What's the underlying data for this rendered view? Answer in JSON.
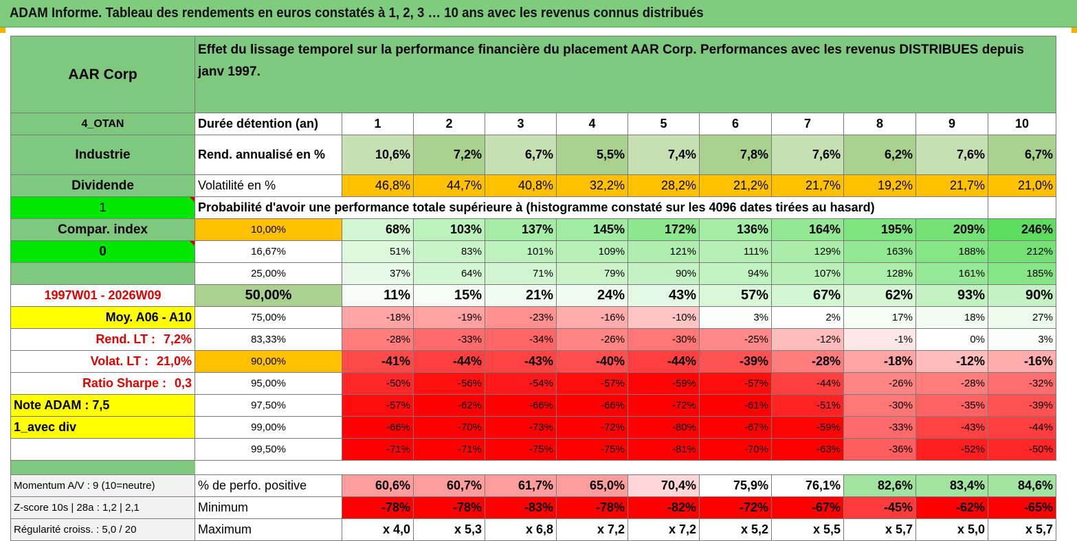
{
  "title": "ADAM Informe. Tableau des rendements en euros constatés à 1, 2, 3 … 10 ans avec les revenus connus distribués",
  "company": "AAR Corp",
  "header_text": "Effet du lissage temporel sur la performance financière du placement AAR Corp. Performances avec les revenus DISTRIBUES depuis janv 1997.",
  "side": [
    "4_OTAN",
    "Industrie",
    "Dividende",
    "1",
    "Compar. index",
    "0",
    "",
    "1997W01 - 2026W09"
  ],
  "side_yellow": [
    {
      "label": "Moy. A06 - A10",
      "value": ""
    },
    {
      "label": "Rend. LT :",
      "value": "7,2%"
    },
    {
      "label": "Volat. LT :",
      "value": "21,0%"
    },
    {
      "label": "Ratio Sharpe :",
      "value": "0,3"
    },
    {
      "label": "Note ADAM : 7,5",
      "value": ""
    },
    {
      "label": "1_avec div",
      "value": ""
    }
  ],
  "labels": {
    "duree": "Durée détention (an)",
    "rend": "Rend. annualisé en %",
    "vol": "Volatilité en %",
    "proba": "Probabilité d'avoir une performance totale supérieure à (histogramme constaté sur les 4096 dates tirées au hasard)"
  },
  "years": [
    "1",
    "2",
    "3",
    "4",
    "5",
    "6",
    "7",
    "8",
    "9",
    "10"
  ],
  "rend": [
    "10,6%",
    "7,2%",
    "6,7%",
    "5,5%",
    "7,4%",
    "7,8%",
    "7,6%",
    "6,2%",
    "7,6%",
    "6,7%"
  ],
  "vol": [
    "46,8%",
    "44,7%",
    "40,8%",
    "32,2%",
    "28,2%",
    "21,2%",
    "21,7%",
    "19,2%",
    "21,7%",
    "21,0%"
  ],
  "percentiles": [
    {
      "p": "10,00%",
      "v": [
        "68%",
        "103%",
        "137%",
        "145%",
        "172%",
        "136%",
        "164%",
        "195%",
        "209%",
        "246%"
      ]
    },
    {
      "p": "16,67%",
      "v": [
        "51%",
        "83%",
        "101%",
        "109%",
        "121%",
        "111%",
        "129%",
        "163%",
        "188%",
        "212%"
      ]
    },
    {
      "p": "25,00%",
      "v": [
        "37%",
        "64%",
        "71%",
        "79%",
        "90%",
        "94%",
        "107%",
        "128%",
        "161%",
        "185%"
      ]
    },
    {
      "p": "50,00%",
      "v": [
        "11%",
        "15%",
        "21%",
        "24%",
        "43%",
        "57%",
        "67%",
        "62%",
        "93%",
        "90%"
      ]
    },
    {
      "p": "75,00%",
      "v": [
        "-18%",
        "-19%",
        "-23%",
        "-16%",
        "-10%",
        "3%",
        "2%",
        "17%",
        "18%",
        "27%"
      ]
    },
    {
      "p": "83,33%",
      "v": [
        "-28%",
        "-33%",
        "-34%",
        "-26%",
        "-30%",
        "-25%",
        "-12%",
        "-1%",
        "0%",
        "3%"
      ]
    },
    {
      "p": "90,00%",
      "v": [
        "-41%",
        "-44%",
        "-43%",
        "-40%",
        "-44%",
        "-39%",
        "-28%",
        "-18%",
        "-12%",
        "-16%"
      ]
    },
    {
      "p": "95,00%",
      "v": [
        "-50%",
        "-56%",
        "-54%",
        "-57%",
        "-59%",
        "-57%",
        "-44%",
        "-26%",
        "-28%",
        "-32%"
      ]
    },
    {
      "p": "97,50%",
      "v": [
        "-57%",
        "-62%",
        "-66%",
        "-66%",
        "-72%",
        "-61%",
        "-51%",
        "-30%",
        "-35%",
        "-39%"
      ]
    },
    {
      "p": "99,00%",
      "v": [
        "-66%",
        "-70%",
        "-73%",
        "-72%",
        "-80%",
        "-67%",
        "-59%",
        "-33%",
        "-43%",
        "-44%"
      ]
    },
    {
      "p": "99,50%",
      "v": [
        "-71%",
        "-71%",
        "-75%",
        "-75%",
        "-81%",
        "-70%",
        "-63%",
        "-36%",
        "-52%",
        "-50%"
      ]
    }
  ],
  "bottom": [
    {
      "side": "Momentum A/V : 9 (10=neutre)",
      "label": "% de perfo. positive",
      "v": [
        "60,6%",
        "60,7%",
        "61,7%",
        "65,0%",
        "70,4%",
        "75,9%",
        "76,1%",
        "82,6%",
        "83,4%",
        "84,6%"
      ]
    },
    {
      "side": "Z-score 10s | 28a : 1,2 | 2,1",
      "label": "Minimum",
      "v": [
        "-78%",
        "-78%",
        "-83%",
        "-78%",
        "-82%",
        "-72%",
        "-67%",
        "-45%",
        "-62%",
        "-65%"
      ]
    },
    {
      "side": "Régularité croiss. : 5,0 / 20",
      "label": "Maximum",
      "v": [
        "x 4,0",
        "x 5,3",
        "x 6,8",
        "x 7,2",
        "x 7,2",
        "x 5,2",
        "x 5,5",
        "x 5,7",
        "x 5,0",
        "x 5,7"
      ]
    }
  ],
  "colors": {
    "header_green": "#7fc97f",
    "bright_green": "#00e600",
    "yellow": "#ffff00",
    "orange": "#ffc000",
    "red_text": "#e00000",
    "rend_light": "#c6e0b4",
    "rend_mid": "#a9d08e"
  }
}
